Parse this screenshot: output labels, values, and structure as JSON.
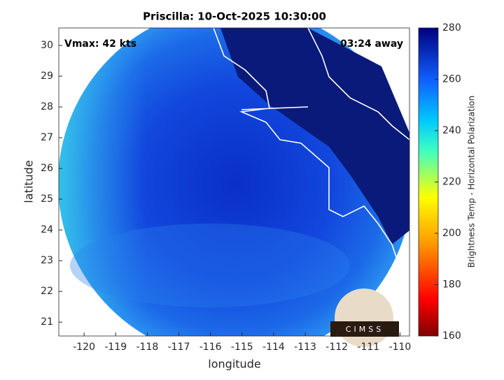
{
  "chart_data": {
    "type": "map",
    "title": "Priscilla: 10-Oct-2025 10:30:00",
    "xlabel": "longitude",
    "ylabel": "latitude",
    "xlim": [
      -120.8,
      -109.7
    ],
    "ylim": [
      20.55,
      30.57
    ],
    "xticks": [
      -120,
      -119,
      -118,
      -117,
      -116,
      -115,
      -114,
      -113,
      -112,
      -111,
      -110
    ],
    "yticks": [
      21,
      22,
      23,
      24,
      25,
      26,
      27,
      28,
      29,
      30
    ],
    "annotations": [
      "Vmax: 42 kts",
      "03:24 away"
    ],
    "logo": "CIMSS",
    "colorbar": {
      "label": "Brightness Temp - Horizontal Polarization",
      "lim": [
        160,
        280
      ],
      "ticks": [
        160,
        180,
        200,
        220,
        240,
        260,
        280
      ]
    }
  }
}
